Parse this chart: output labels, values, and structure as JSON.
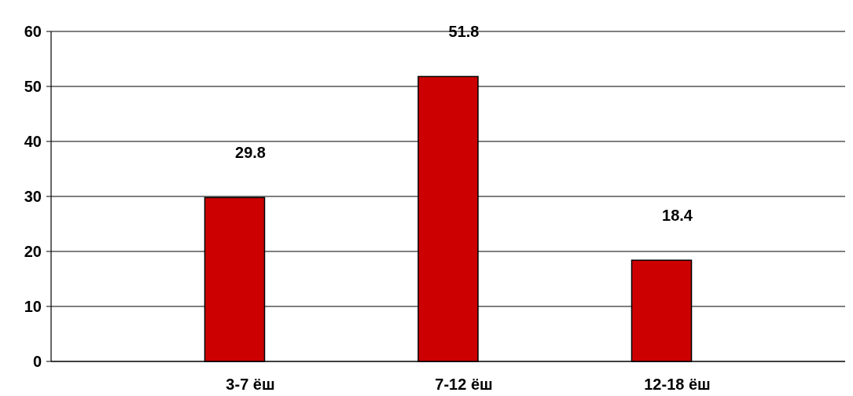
{
  "chart_data": {
    "type": "bar",
    "categories": [
      "3-7 ёш",
      "7-12 ёш",
      "12-18 ёш"
    ],
    "values": [
      29.8,
      51.8,
      18.4
    ],
    "color": "#cc0000",
    "ylim": [
      0,
      60
    ],
    "yticks": [
      0,
      10,
      20,
      30,
      40,
      50,
      60
    ],
    "grid": "y",
    "data_labels": true
  }
}
